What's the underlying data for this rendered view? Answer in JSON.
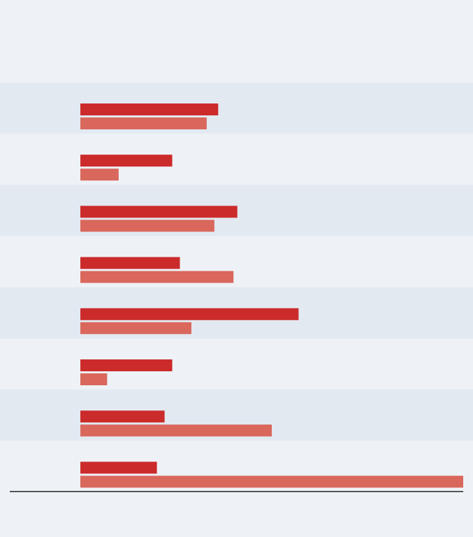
{
  "chart_data": {
    "type": "bar",
    "orientation": "horizontal",
    "title": "",
    "subtitle": "",
    "categories": [
      "",
      "",
      "",
      "",
      "",
      "",
      "",
      ""
    ],
    "series": [
      {
        "values": [
          36,
          24,
          41,
          26,
          57,
          24,
          22,
          20
        ],
        "color": "#cc2b2b"
      },
      {
        "values": [
          33,
          10,
          35,
          40,
          29,
          7,
          50,
          100
        ],
        "color": "#d9675c"
      }
    ],
    "xlim": [
      0,
      100
    ],
    "grid": false,
    "legend": "none",
    "source": "",
    "note": ""
  },
  "colors": {
    "background": "#eef2f7",
    "band_alt": "#e2e9f1",
    "series_primary": "#cc2b2b",
    "series_secondary": "#d9675c",
    "rule": "#222222"
  }
}
